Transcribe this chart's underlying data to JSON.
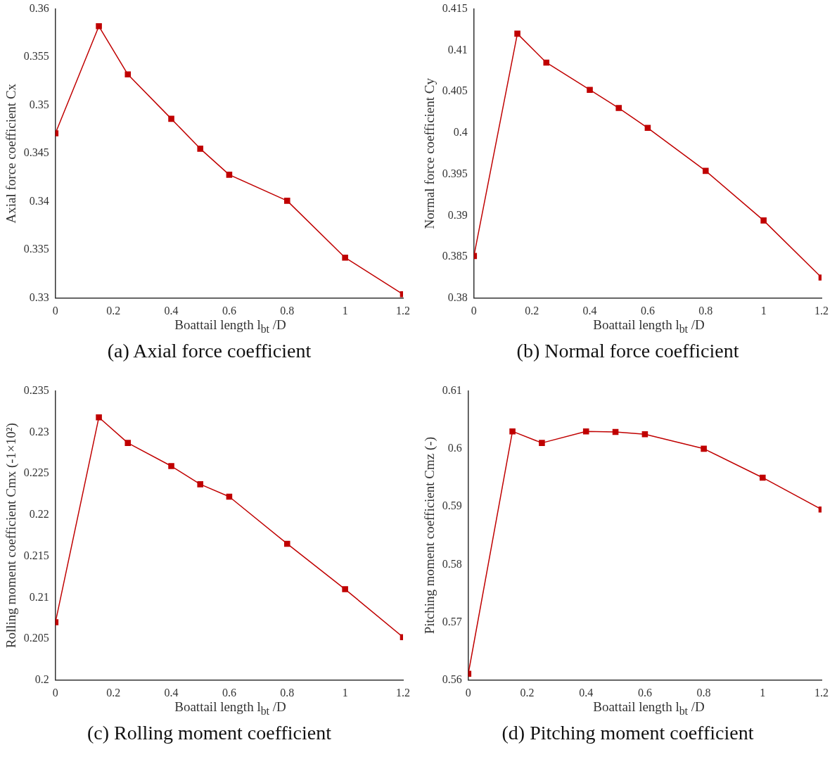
{
  "chart_data": [
    {
      "type": "line",
      "title": "(a) Axial force coefficient",
      "xlabel": "Boattail length l$_{bt}$ /D",
      "ylabel": "Axial force coefficient Cx",
      "x": [
        0,
        0.15,
        0.25,
        0.4,
        0.5,
        0.6,
        0.8,
        1,
        1.2
      ],
      "values": [
        0.3471,
        0.3582,
        0.3532,
        0.3486,
        0.3455,
        0.3428,
        0.3401,
        0.3342,
        0.3304
      ],
      "color": "#c00000",
      "marker": "square",
      "line_style": "solid",
      "grid": false,
      "xlim": [
        0,
        1.2
      ],
      "xticks": [
        0,
        0.2,
        0.4,
        0.6,
        0.8,
        1,
        1.2
      ],
      "ylim": [
        0.33,
        0.36
      ],
      "yticks": [
        0.33,
        0.335,
        0.34,
        0.345,
        0.35,
        0.355,
        0.36
      ]
    },
    {
      "type": "line",
      "title": "(b) Normal force coefficient",
      "xlabel": "Boattail length l$_{bt}$ /D",
      "ylabel": "Normal force coefficient Cy",
      "x": [
        0,
        0.15,
        0.25,
        0.4,
        0.5,
        0.6,
        0.8,
        1,
        1.2
      ],
      "values": [
        0.3851,
        0.412,
        0.4085,
        0.4052,
        0.403,
        0.4006,
        0.3954,
        0.3894,
        0.3825
      ],
      "color": "#c00000",
      "marker": "square",
      "line_style": "solid",
      "grid": false,
      "xlim": [
        0,
        1.2
      ],
      "xticks": [
        0,
        0.2,
        0.4,
        0.6,
        0.8,
        1,
        1.2
      ],
      "ylim": [
        0.38,
        0.415
      ],
      "yticks": [
        0.38,
        0.385,
        0.39,
        0.395,
        0.4,
        0.405,
        0.41,
        0.415
      ]
    },
    {
      "type": "line",
      "title": "(c) Rolling moment coefficient",
      "xlabel": "Boattail length l$_{bt}$ /D",
      "ylabel": "Rolling moment coefficient Cmx (-1×10²)",
      "x": [
        0,
        0.15,
        0.25,
        0.4,
        0.5,
        0.6,
        0.8,
        1,
        1.2
      ],
      "values": [
        0.207,
        0.2318,
        0.2287,
        0.2259,
        0.2237,
        0.2222,
        0.2165,
        0.211,
        0.2052
      ],
      "color": "#c00000",
      "marker": "square",
      "line_style": "solid",
      "grid": false,
      "xlim": [
        0,
        1.2
      ],
      "xticks": [
        0,
        0.2,
        0.4,
        0.6,
        0.8,
        1,
        1.2
      ],
      "ylim": [
        0.2,
        0.235
      ],
      "yticks": [
        0.2,
        0.205,
        0.21,
        0.215,
        0.22,
        0.225,
        0.23,
        0.235
      ]
    },
    {
      "type": "line",
      "title": "(d) Pitching moment coefficient",
      "xlabel": "Boattail length l$_{bt}$ /D",
      "ylabel": "Pitching moment coefficient Cmz (-)",
      "x": [
        0,
        0.15,
        0.25,
        0.4,
        0.5,
        0.6,
        0.8,
        1,
        1.2
      ],
      "values": [
        0.5611,
        0.603,
        0.601,
        0.603,
        0.6029,
        0.6025,
        0.6,
        0.595,
        0.5895
      ],
      "color": "#c00000",
      "marker": "square",
      "line_style": "solid",
      "grid": false,
      "xlim": [
        0,
        1.2
      ],
      "xticks": [
        0,
        0.2,
        0.4,
        0.6,
        0.8,
        1,
        1.2
      ],
      "ylim": [
        0.56,
        0.61
      ],
      "yticks": [
        0.56,
        0.57,
        0.58,
        0.59,
        0.6,
        0.61
      ]
    }
  ]
}
